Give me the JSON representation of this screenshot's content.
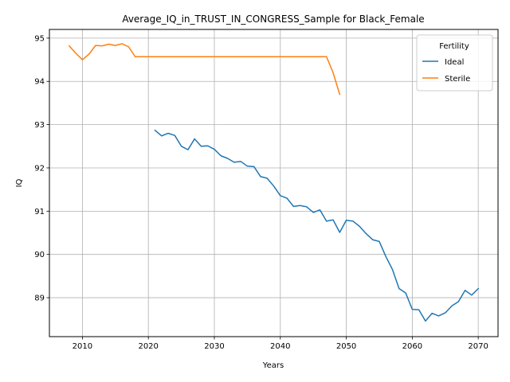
{
  "chart_data": {
    "type": "line",
    "title": "Average_IQ_in_TRUST_IN_CONGRESS_Sample for Black_Female",
    "xlabel": "Years",
    "ylabel": "IQ",
    "xlim": [
      2005,
      2073
    ],
    "ylim": [
      88.1,
      95.2
    ],
    "xticks": [
      2010,
      2020,
      2030,
      2040,
      2050,
      2060,
      2070
    ],
    "yticks": [
      89,
      90,
      91,
      92,
      93,
      94,
      95
    ],
    "grid": true,
    "legend": {
      "title": "Fertility",
      "placement": "top-right"
    },
    "series": [
      {
        "name": "Ideal",
        "color": "#1f77b4",
        "x": [
          2021,
          2022,
          2023,
          2024,
          2025,
          2026,
          2027,
          2028,
          2029,
          2030,
          2031,
          2032,
          2033,
          2034,
          2035,
          2036,
          2037,
          2038,
          2039,
          2040,
          2041,
          2042,
          2043,
          2044,
          2045,
          2046,
          2047,
          2048,
          2049,
          2050,
          2051,
          2052,
          2053,
          2054,
          2055,
          2056,
          2057,
          2058,
          2059,
          2060,
          2061,
          2062,
          2063,
          2064,
          2065,
          2066,
          2067,
          2068,
          2069,
          2070
        ],
        "y": [
          92.87,
          92.74,
          92.8,
          92.75,
          92.5,
          92.42,
          92.67,
          92.5,
          92.51,
          92.43,
          92.28,
          92.22,
          92.13,
          92.15,
          92.04,
          92.03,
          91.8,
          91.76,
          91.58,
          91.36,
          91.3,
          91.11,
          91.13,
          91.1,
          90.97,
          91.03,
          90.77,
          90.8,
          90.51,
          90.79,
          90.77,
          90.65,
          90.48,
          90.34,
          90.3,
          89.95,
          89.65,
          89.21,
          89.11,
          88.73,
          88.72,
          88.46,
          88.64,
          88.58,
          88.65,
          88.81,
          88.91,
          89.17,
          89.06,
          89.21
        ]
      },
      {
        "name": "Sterile",
        "color": "#ff7f0e",
        "x": [
          2008,
          2009,
          2010,
          2011,
          2012,
          2013,
          2014,
          2015,
          2016,
          2017,
          2018,
          2019,
          2020,
          2021,
          2022,
          2023,
          2024,
          2025,
          2026,
          2027,
          2028,
          2029,
          2030,
          2031,
          2032,
          2033,
          2034,
          2035,
          2036,
          2037,
          2038,
          2039,
          2040,
          2041,
          2042,
          2043,
          2044,
          2045,
          2046,
          2047,
          2048,
          2049
        ],
        "y": [
          94.82,
          94.65,
          94.5,
          94.63,
          94.83,
          94.82,
          94.86,
          94.83,
          94.87,
          94.8,
          94.57,
          94.57,
          94.57,
          94.57,
          94.57,
          94.57,
          94.57,
          94.57,
          94.57,
          94.57,
          94.57,
          94.57,
          94.57,
          94.57,
          94.57,
          94.57,
          94.57,
          94.57,
          94.57,
          94.57,
          94.57,
          94.57,
          94.57,
          94.57,
          94.57,
          94.57,
          94.57,
          94.57,
          94.57,
          94.57,
          94.2,
          93.7
        ]
      }
    ]
  }
}
